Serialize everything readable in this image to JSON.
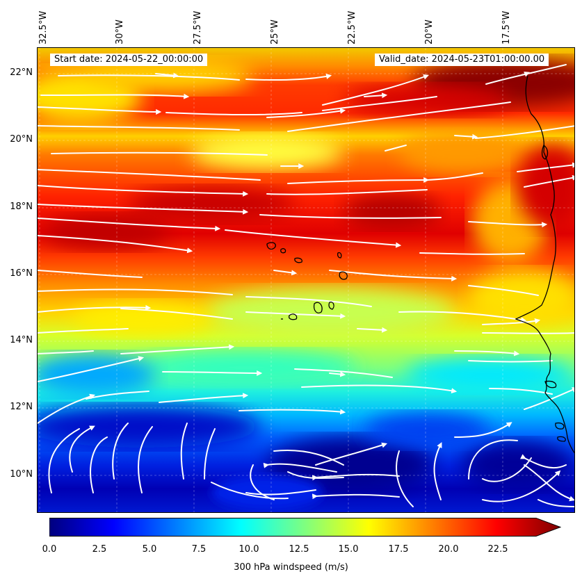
{
  "header": {
    "start_date": "Start date: 2024-05-22_00:00:00",
    "valid_date": "Valid_date: 2024-05-23T01:00:00.00"
  },
  "axes": {
    "lon_labels": [
      "32.5°W",
      "30°W",
      "27.5°W",
      "25°W",
      "22.5°W",
      "20°W",
      "17.5°W"
    ],
    "lat_labels": [
      "22°N",
      "20°N",
      "18°N",
      "16°N",
      "14°N",
      "12°N",
      "10°N"
    ]
  },
  "colorbar": {
    "label": "300 hPa windspeed (m/s)",
    "ticks": [
      "0.0",
      "2.5",
      "5.0",
      "7.5",
      "10.0",
      "12.5",
      "15.0",
      "17.5",
      "20.0",
      "22.5"
    ],
    "min": 0,
    "max": 25,
    "extend": "max",
    "colors": [
      "#00007f",
      "#0000ff",
      "#007fff",
      "#00ffff",
      "#7fff7f",
      "#ffff00",
      "#ff7f00",
      "#ff0000",
      "#7f0000"
    ]
  },
  "map": {
    "extent": {
      "lon_min": -32.6,
      "lon_max": -15.0,
      "lat_min": 8.9,
      "lat_max": 22.8
    },
    "gridlines": "dashed",
    "streamlines_color": "#ffffff",
    "coastline_color": "#000000"
  }
}
